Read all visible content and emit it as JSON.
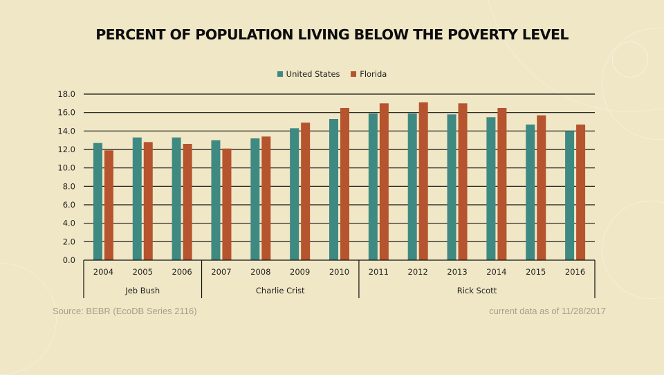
{
  "chart_data": {
    "type": "bar",
    "title": "PERCENT OF POPULATION LIVING BELOW THE POVERTY LEVEL",
    "xlabel": "",
    "ylabel": "",
    "ylim": [
      0,
      18
    ],
    "yticks": [
      0,
      2,
      4,
      6,
      8,
      10,
      12,
      14,
      16,
      18
    ],
    "ytick_labels": [
      "0.0",
      "2.0",
      "4.0",
      "6.0",
      "8.0",
      "10.0",
      "12.0",
      "14.0",
      "16.0",
      "18.0"
    ],
    "grid": true,
    "legend_position": "top-center",
    "categories": [
      "2004",
      "2005",
      "2006",
      "2007",
      "2008",
      "2009",
      "2010",
      "2011",
      "2012",
      "2013",
      "2014",
      "2015",
      "2016"
    ],
    "category_groups": [
      {
        "label": "Jeb Bush",
        "count": 3
      },
      {
        "label": "Charlie Crist",
        "count": 4
      },
      {
        "label": "Rick Scott",
        "count": 6
      }
    ],
    "series": [
      {
        "name": "United States",
        "color": "#3F8983",
        "values": [
          12.7,
          13.3,
          13.3,
          13.0,
          13.2,
          14.3,
          15.3,
          15.9,
          15.9,
          15.8,
          15.5,
          14.7,
          14.0
        ]
      },
      {
        "name": "Florida",
        "color": "#B5542E",
        "values": [
          11.9,
          12.8,
          12.6,
          12.1,
          13.4,
          14.9,
          16.5,
          17.0,
          17.1,
          17.0,
          16.5,
          15.7,
          14.7
        ]
      }
    ]
  },
  "footer": {
    "source": "Source: BEBR (EcoDB Series 2116)",
    "as_of": "current data as of 11/28/2017"
  }
}
